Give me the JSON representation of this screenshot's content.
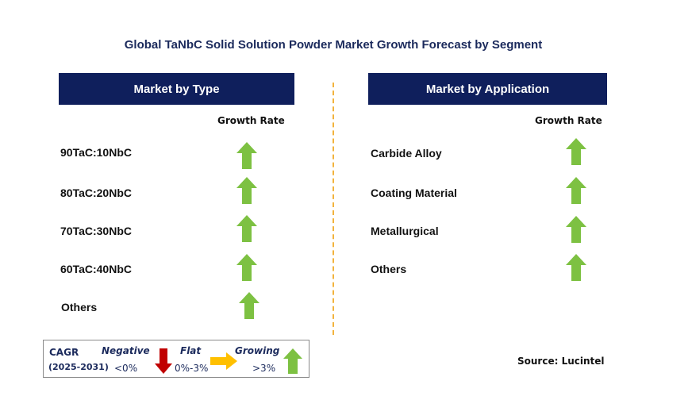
{
  "title": "Global TaNbC Solid Solution Powder Market Growth Forecast by Segment",
  "left_panel": {
    "header": "Market by Type",
    "growth_rate_label": "Growth Rate",
    "rows": [
      {
        "label": "90TaC:10NbC",
        "trend": "growing"
      },
      {
        "label": "80TaC:20NbC",
        "trend": "growing"
      },
      {
        "label": "70TaC:30NbC",
        "trend": "growing"
      },
      {
        "label": "60TaC:40NbC",
        "trend": "growing"
      },
      {
        "label": "Others",
        "trend": "growing"
      }
    ]
  },
  "right_panel": {
    "header": "Market by Application",
    "growth_rate_label": "Growth Rate",
    "rows": [
      {
        "label": "Carbide Alloy",
        "trend": "growing"
      },
      {
        "label": "Coating Material",
        "trend": "growing"
      },
      {
        "label": "Metallurgical",
        "trend": "growing"
      },
      {
        "label": "Others",
        "trend": "growing"
      }
    ]
  },
  "legend": {
    "cagr": "CAGR",
    "period": "(2025-2031)",
    "negative": {
      "label": "Negative",
      "range": "<0%",
      "icon": "down-arrow-icon",
      "color": "#c00000"
    },
    "flat": {
      "label": "Flat",
      "range": "0%-3%",
      "icon": "right-arrow-icon",
      "color": "#ffc000"
    },
    "growing": {
      "label": "Growing",
      "range": ">3%",
      "icon": "up-arrow-icon",
      "color": "#7dc142"
    }
  },
  "source": "Source: Lucintel",
  "colors": {
    "header_bg": "#0f1f5c",
    "divider": "#f2b33d",
    "up_arrow": "#7dc142"
  }
}
